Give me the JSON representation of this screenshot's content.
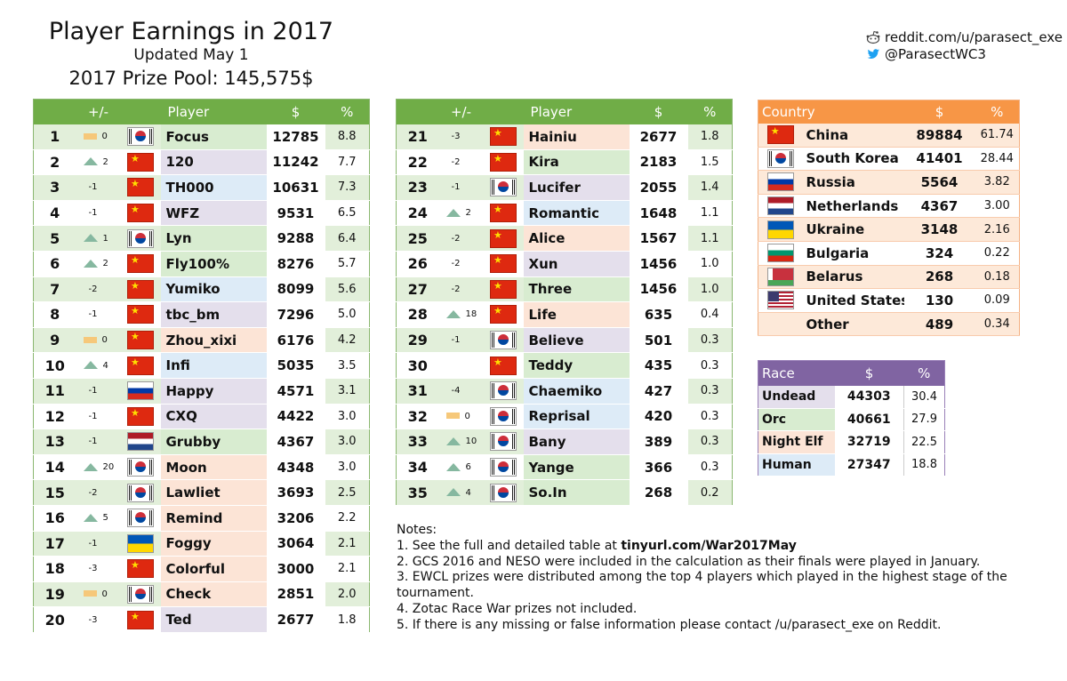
{
  "header": {
    "title": "Player Earnings in 2017",
    "updated": "Updated May 1",
    "prize_pool": "2017 Prize Pool: 145,575$"
  },
  "social": {
    "reddit": "reddit.com/u/parasect_exe",
    "twitter": "@ParasectWC3",
    "reddit_icon": "reddit-icon",
    "twitter_icon": "twitter-bird-icon"
  },
  "colors": {
    "player_header": "#70ad47",
    "country_header": "#f79646",
    "race_header": "#8064a2",
    "up_arrow": "#86b8a0",
    "down_arrow": "#d9573a",
    "no_change": "#f6c87a",
    "name_undead": "#e4dfec",
    "name_orc": "#d8ecd0",
    "name_nightelf": "#fce4d6",
    "name_human": "#ddebf7"
  },
  "player_headers": {
    "change": "+/-",
    "player": "Player",
    "money": "$",
    "percent": "%"
  },
  "players_left": [
    {
      "rank": "1",
      "dir": "eq",
      "delta": "0",
      "flag": "kr",
      "name": "Focus",
      "race": "orc",
      "money": "12785",
      "pct": "8.8"
    },
    {
      "rank": "2",
      "dir": "up",
      "delta": "2",
      "flag": "cn",
      "name": "120",
      "race": "undead",
      "money": "11242",
      "pct": "7.7"
    },
    {
      "rank": "3",
      "dir": "down",
      "delta": "-1",
      "flag": "cn",
      "name": "TH000",
      "race": "human",
      "money": "10631",
      "pct": "7.3"
    },
    {
      "rank": "4",
      "dir": "down",
      "delta": "-1",
      "flag": "cn",
      "name": "WFZ",
      "race": "undead",
      "money": "9531",
      "pct": "6.5"
    },
    {
      "rank": "5",
      "dir": "up",
      "delta": "1",
      "flag": "kr",
      "name": "Lyn",
      "race": "orc",
      "money": "9288",
      "pct": "6.4"
    },
    {
      "rank": "6",
      "dir": "up",
      "delta": "2",
      "flag": "cn",
      "name": "Fly100%",
      "race": "orc",
      "money": "8276",
      "pct": "5.7"
    },
    {
      "rank": "7",
      "dir": "down",
      "delta": "-2",
      "flag": "cn",
      "name": "Yumiko",
      "race": "human",
      "money": "8099",
      "pct": "5.6"
    },
    {
      "rank": "8",
      "dir": "down",
      "delta": "-1",
      "flag": "cn",
      "name": "tbc_bm",
      "race": "undead",
      "money": "7296",
      "pct": "5.0"
    },
    {
      "rank": "9",
      "dir": "eq",
      "delta": "0",
      "flag": "cn",
      "name": "Zhou_xixi",
      "race": "nightelf",
      "money": "6176",
      "pct": "4.2"
    },
    {
      "rank": "10",
      "dir": "up",
      "delta": "4",
      "flag": "cn",
      "name": "Infi",
      "race": "human",
      "money": "5035",
      "pct": "3.5"
    },
    {
      "rank": "11",
      "dir": "down",
      "delta": "-1",
      "flag": "ru",
      "name": "Happy",
      "race": "undead",
      "money": "4571",
      "pct": "3.1"
    },
    {
      "rank": "12",
      "dir": "down",
      "delta": "-1",
      "flag": "cn",
      "name": "CXQ",
      "race": "undead",
      "money": "4422",
      "pct": "3.0"
    },
    {
      "rank": "13",
      "dir": "down",
      "delta": "-1",
      "flag": "nl",
      "name": "Grubby",
      "race": "orc",
      "money": "4367",
      "pct": "3.0"
    },
    {
      "rank": "14",
      "dir": "up",
      "delta": "20",
      "flag": "kr",
      "name": "Moon",
      "race": "nightelf",
      "money": "4348",
      "pct": "3.0"
    },
    {
      "rank": "15",
      "dir": "down",
      "delta": "-2",
      "flag": "kr",
      "name": "Lawliet",
      "race": "nightelf",
      "money": "3693",
      "pct": "2.5"
    },
    {
      "rank": "16",
      "dir": "up",
      "delta": "5",
      "flag": "kr",
      "name": "Remind",
      "race": "nightelf",
      "money": "3206",
      "pct": "2.2"
    },
    {
      "rank": "17",
      "dir": "down",
      "delta": "-1",
      "flag": "ua",
      "name": "Foggy",
      "race": "nightelf",
      "money": "3064",
      "pct": "2.1"
    },
    {
      "rank": "18",
      "dir": "down",
      "delta": "-3",
      "flag": "cn",
      "name": "Colorful",
      "race": "nightelf",
      "money": "3000",
      "pct": "2.1"
    },
    {
      "rank": "19",
      "dir": "eq",
      "delta": "0",
      "flag": "kr",
      "name": "Check",
      "race": "nightelf",
      "money": "2851",
      "pct": "2.0"
    },
    {
      "rank": "20",
      "dir": "down",
      "delta": "-3",
      "flag": "cn",
      "name": "Ted",
      "race": "undead",
      "money": "2677",
      "pct": "1.8"
    }
  ],
  "players_right": [
    {
      "rank": "21",
      "dir": "down",
      "delta": "-3",
      "flag": "cn",
      "name": "Hainiu",
      "race": "nightelf",
      "money": "2677",
      "pct": "1.8"
    },
    {
      "rank": "22",
      "dir": "down",
      "delta": "-2",
      "flag": "cn",
      "name": "Kira",
      "race": "orc",
      "money": "2183",
      "pct": "1.5"
    },
    {
      "rank": "23",
      "dir": "down",
      "delta": "-1",
      "flag": "kr",
      "name": "Lucifer",
      "race": "undead",
      "money": "2055",
      "pct": "1.4"
    },
    {
      "rank": "24",
      "dir": "up",
      "delta": "2",
      "flag": "cn",
      "name": "Romantic",
      "race": "human",
      "money": "1648",
      "pct": "1.1"
    },
    {
      "rank": "25",
      "dir": "down",
      "delta": "-2",
      "flag": "cn",
      "name": "Alice",
      "race": "nightelf",
      "money": "1567",
      "pct": "1.1"
    },
    {
      "rank": "26",
      "dir": "down",
      "delta": "-2",
      "flag": "cn",
      "name": "Xun",
      "race": "undead",
      "money": "1456",
      "pct": "1.0"
    },
    {
      "rank": "27",
      "dir": "down",
      "delta": "-2",
      "flag": "cn",
      "name": "Three",
      "race": "orc",
      "money": "1456",
      "pct": "1.0"
    },
    {
      "rank": "28",
      "dir": "up",
      "delta": "18",
      "flag": "cn",
      "name": "Life",
      "race": "nightelf",
      "money": "635",
      "pct": "0.4"
    },
    {
      "rank": "29",
      "dir": "down",
      "delta": "-1",
      "flag": "kr",
      "name": "Believe",
      "race": "undead",
      "money": "501",
      "pct": "0.3"
    },
    {
      "rank": "30",
      "dir": "none",
      "delta": "",
      "flag": "cn",
      "name": "Teddy",
      "race": "orc",
      "money": "435",
      "pct": "0.3"
    },
    {
      "rank": "31",
      "dir": "down",
      "delta": "-4",
      "flag": "kr",
      "name": "Chaemiko",
      "race": "human",
      "money": "427",
      "pct": "0.3"
    },
    {
      "rank": "32",
      "dir": "eq",
      "delta": "0",
      "flag": "kr",
      "name": "Reprisal",
      "race": "human",
      "money": "420",
      "pct": "0.3"
    },
    {
      "rank": "33",
      "dir": "up",
      "delta": "10",
      "flag": "kr",
      "name": "Bany",
      "race": "undead",
      "money": "389",
      "pct": "0.3"
    },
    {
      "rank": "34",
      "dir": "up",
      "delta": "6",
      "flag": "kr",
      "name": "Yange",
      "race": "orc",
      "money": "366",
      "pct": "0.3"
    },
    {
      "rank": "35",
      "dir": "up",
      "delta": "4",
      "flag": "kr",
      "name": "So.In",
      "race": "orc",
      "money": "268",
      "pct": "0.2"
    }
  ],
  "country_headers": {
    "country": "Country",
    "money": "$",
    "percent": "%"
  },
  "countries": [
    {
      "flag": "cn",
      "name": "China",
      "money": "89884",
      "pct": "61.74"
    },
    {
      "flag": "kr",
      "name": "South Korea",
      "money": "41401",
      "pct": "28.44"
    },
    {
      "flag": "ru",
      "name": "Russia",
      "money": "5564",
      "pct": "3.82"
    },
    {
      "flag": "nl",
      "name": "Netherlands",
      "money": "4367",
      "pct": "3.00"
    },
    {
      "flag": "ua",
      "name": "Ukraine",
      "money": "3148",
      "pct": "2.16"
    },
    {
      "flag": "bg",
      "name": "Bulgaria",
      "money": "324",
      "pct": "0.22"
    },
    {
      "flag": "by",
      "name": "Belarus",
      "money": "268",
      "pct": "0.18"
    },
    {
      "flag": "us",
      "name": "United States",
      "money": "130",
      "pct": "0.09"
    },
    {
      "flag": "none",
      "name": "Other",
      "money": "489",
      "pct": "0.34"
    }
  ],
  "race_headers": {
    "race": "Race",
    "money": "$",
    "percent": "%"
  },
  "races": [
    {
      "key": "undead",
      "name": "Undead",
      "money": "44303",
      "pct": "30.4"
    },
    {
      "key": "orc",
      "name": "Orc",
      "money": "40661",
      "pct": "27.9"
    },
    {
      "key": "nightelf",
      "name": "Night Elf",
      "money": "32719",
      "pct": "22.5"
    },
    {
      "key": "human",
      "name": "Human",
      "money": "27347",
      "pct": "18.8"
    }
  ],
  "notes": {
    "heading": "Notes:",
    "n1_prefix": "1. See the full and detailed table at ",
    "n1_link": "tinyurl.com/War2017May",
    "n2": "2. GCS 2016 and NESO were included in the calculation as their finals were played in January.",
    "n3": "3. EWCL prizes were distributed among the top 4 players which played in the highest stage of the tournament.",
    "n4": "4. Zotac Race War prizes not included.",
    "n5": "5. If there is any missing or false information please contact /u/parasect_exe on Reddit."
  }
}
